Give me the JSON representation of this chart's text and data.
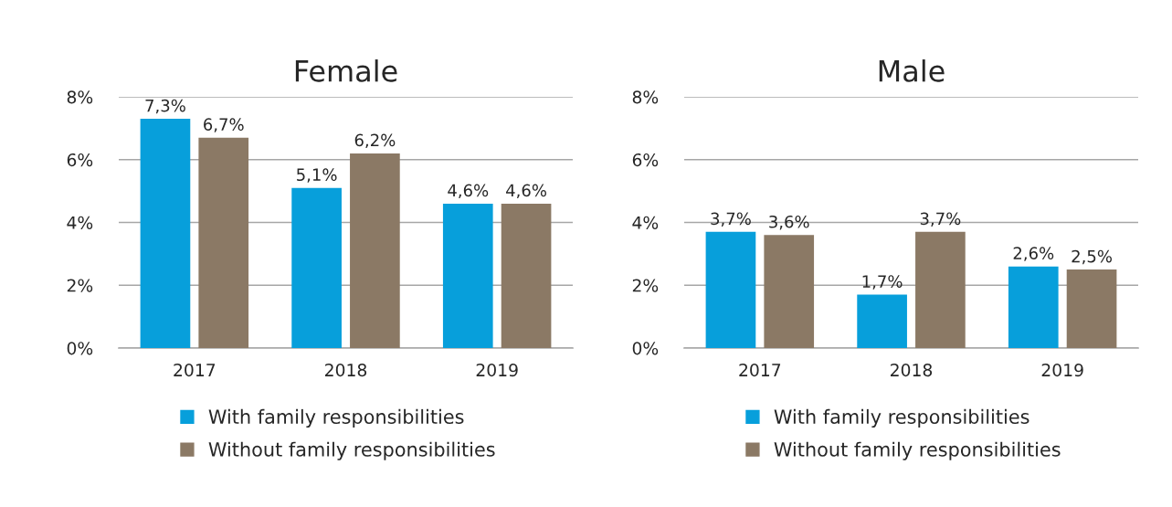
{
  "chart_data": [
    {
      "type": "bar",
      "title": "Female",
      "categories": [
        "2017",
        "2018",
        "2019"
      ],
      "series": [
        {
          "name": "With family responsibilities",
          "color": "#079fdb",
          "values": [
            7.3,
            5.1,
            4.6
          ],
          "value_labels": [
            "7,3%",
            "5,1%",
            "4,6%"
          ]
        },
        {
          "name": "Without family responsibilities",
          "color": "#8b7965",
          "values": [
            6.7,
            6.2,
            4.6
          ],
          "value_labels": [
            "6,7%",
            "6,2%",
            "4,6%"
          ]
        }
      ],
      "ylim": [
        0,
        8
      ],
      "yticks": [
        {
          "value": 0,
          "label": "0%"
        },
        {
          "value": 2,
          "label": "2%"
        },
        {
          "value": 4,
          "label": "4%"
        },
        {
          "value": 6,
          "label": "6%"
        },
        {
          "value": 8,
          "label": "8%"
        }
      ],
      "grid": "y",
      "legend": "bottom"
    },
    {
      "type": "bar",
      "title": "Male",
      "categories": [
        "2017",
        "2018",
        "2019"
      ],
      "series": [
        {
          "name": "With family responsibilities",
          "color": "#079fdb",
          "values": [
            3.7,
            1.7,
            2.6
          ],
          "value_labels": [
            "3,7%",
            "1,7%",
            "2,6%"
          ]
        },
        {
          "name": "Without family responsibilities",
          "color": "#8b7965",
          "values": [
            3.6,
            3.7,
            2.5
          ],
          "value_labels": [
            "3,6%",
            "3,7%",
            "2,5%"
          ]
        }
      ],
      "ylim": [
        0,
        8
      ],
      "yticks": [
        {
          "value": 0,
          "label": "0%"
        },
        {
          "value": 2,
          "label": "2%"
        },
        {
          "value": 4,
          "label": "4%"
        },
        {
          "value": 6,
          "label": "6%"
        },
        {
          "value": 8,
          "label": "8%"
        }
      ],
      "grid": "y",
      "legend": "bottom"
    }
  ]
}
